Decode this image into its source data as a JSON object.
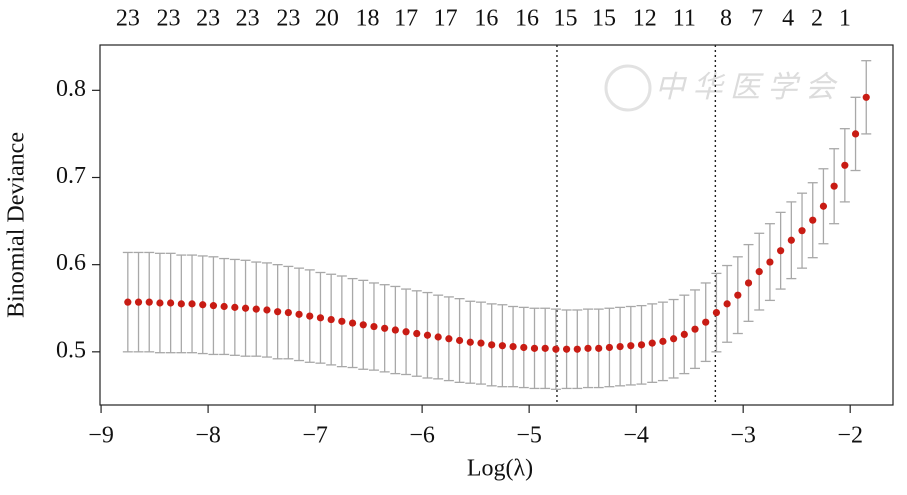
{
  "chart_data": {
    "type": "errorbar",
    "xlabel": "Log(λ)",
    "ylabel": "Binomial Deviance",
    "watermark": "中 华 医 学 会",
    "x": [
      -8.75,
      -8.65,
      -8.55,
      -8.45,
      -8.35,
      -8.25,
      -8.15,
      -8.05,
      -7.95,
      -7.85,
      -7.75,
      -7.65,
      -7.55,
      -7.45,
      -7.35,
      -7.25,
      -7.15,
      -7.05,
      -6.95,
      -6.85,
      -6.75,
      -6.65,
      -6.55,
      -6.45,
      -6.35,
      -6.25,
      -6.15,
      -6.05,
      -5.95,
      -5.85,
      -5.75,
      -5.65,
      -5.55,
      -5.45,
      -5.35,
      -5.25,
      -5.15,
      -5.05,
      -4.95,
      -4.85,
      -4.75,
      -4.65,
      -4.55,
      -4.45,
      -4.35,
      -4.25,
      -4.15,
      -4.05,
      -3.95,
      -3.85,
      -3.75,
      -3.65,
      -3.55,
      -3.45,
      -3.35,
      -3.25,
      -3.15,
      -3.05,
      -2.95,
      -2.85,
      -2.75,
      -2.65,
      -2.55,
      -2.45,
      -2.35,
      -2.25,
      -2.15,
      -2.05,
      -1.95,
      -1.85
    ],
    "values": [
      0.557,
      0.557,
      0.557,
      0.556,
      0.556,
      0.555,
      0.555,
      0.554,
      0.553,
      0.552,
      0.551,
      0.55,
      0.549,
      0.548,
      0.546,
      0.545,
      0.543,
      0.541,
      0.539,
      0.537,
      0.535,
      0.533,
      0.531,
      0.529,
      0.527,
      0.525,
      0.523,
      0.521,
      0.519,
      0.517,
      0.515,
      0.513,
      0.511,
      0.51,
      0.508,
      0.507,
      0.506,
      0.505,
      0.504,
      0.504,
      0.503,
      0.503,
      0.503,
      0.504,
      0.504,
      0.505,
      0.506,
      0.507,
      0.508,
      0.51,
      0.512,
      0.515,
      0.52,
      0.526,
      0.534,
      0.545,
      0.555,
      0.565,
      0.579,
      0.592,
      0.603,
      0.616,
      0.628,
      0.639,
      0.651,
      0.667,
      0.69,
      0.714,
      0.75,
      0.792
    ],
    "errors": [
      0.057,
      0.057,
      0.057,
      0.057,
      0.057,
      0.056,
      0.056,
      0.056,
      0.056,
      0.055,
      0.055,
      0.055,
      0.054,
      0.054,
      0.054,
      0.053,
      0.053,
      0.053,
      0.052,
      0.052,
      0.052,
      0.051,
      0.051,
      0.05,
      0.05,
      0.05,
      0.049,
      0.049,
      0.049,
      0.048,
      0.048,
      0.048,
      0.047,
      0.047,
      0.047,
      0.047,
      0.046,
      0.046,
      0.046,
      0.046,
      0.046,
      0.045,
      0.045,
      0.045,
      0.045,
      0.045,
      0.045,
      0.045,
      0.045,
      0.045,
      0.045,
      0.045,
      0.045,
      0.045,
      0.045,
      0.045,
      0.044,
      0.044,
      0.044,
      0.044,
      0.044,
      0.044,
      0.044,
      0.043,
      0.043,
      0.043,
      0.043,
      0.042,
      0.042,
      0.042
    ],
    "point_color": "#c81c14",
    "bar_color": "#a8a8a8",
    "vlines": [
      -4.74,
      -3.26
    ],
    "xlim": [
      -9.01,
      -1.6
    ],
    "ylim": [
      0.439,
      0.852
    ],
    "xticks": [
      {
        "value": -9,
        "label": "−9"
      },
      {
        "value": -8,
        "label": "−8"
      },
      {
        "value": -7,
        "label": "−7"
      },
      {
        "value": -6,
        "label": "−6"
      },
      {
        "value": -5,
        "label": "−5"
      },
      {
        "value": -4,
        "label": "−4"
      },
      {
        "value": -3,
        "label": "−3"
      },
      {
        "value": -2,
        "label": "−2"
      }
    ],
    "yticks": [
      0.5,
      0.6,
      0.7,
      0.8
    ],
    "x2ticks": [
      {
        "value": -8.75,
        "label": "23"
      },
      {
        "value": -8.37,
        "label": "23"
      },
      {
        "value": -8.0,
        "label": "23"
      },
      {
        "value": -7.63,
        "label": "23"
      },
      {
        "value": -7.25,
        "label": "23"
      },
      {
        "value": -6.89,
        "label": "20"
      },
      {
        "value": -6.51,
        "label": "18"
      },
      {
        "value": -6.15,
        "label": "17"
      },
      {
        "value": -5.78,
        "label": "17"
      },
      {
        "value": -5.4,
        "label": "16"
      },
      {
        "value": -5.02,
        "label": "16"
      },
      {
        "value": -4.66,
        "label": "15"
      },
      {
        "value": -4.3,
        "label": "15"
      },
      {
        "value": -3.92,
        "label": "12"
      },
      {
        "value": -3.55,
        "label": "11"
      },
      {
        "value": -3.16,
        "label": "8"
      },
      {
        "value": -2.87,
        "label": "7"
      },
      {
        "value": -2.58,
        "label": "4"
      },
      {
        "value": -2.31,
        "label": "2"
      },
      {
        "value": -2.05,
        "label": "1"
      }
    ]
  }
}
